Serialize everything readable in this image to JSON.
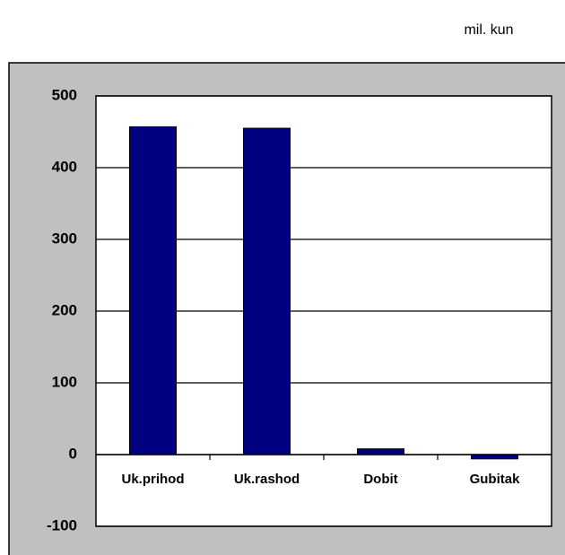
{
  "unit_note": "mil. kun",
  "chart_data": {
    "type": "bar",
    "categories": [
      "Uk.prihod",
      "Uk.rashod",
      "Dobit",
      "Gubitak"
    ],
    "values": [
      457,
      455,
      8,
      -6
    ],
    "color": "#000080",
    "ylim": [
      -100,
      500
    ],
    "yticks": [
      -100,
      0,
      100,
      200,
      300,
      400,
      500
    ],
    "grid": true
  }
}
